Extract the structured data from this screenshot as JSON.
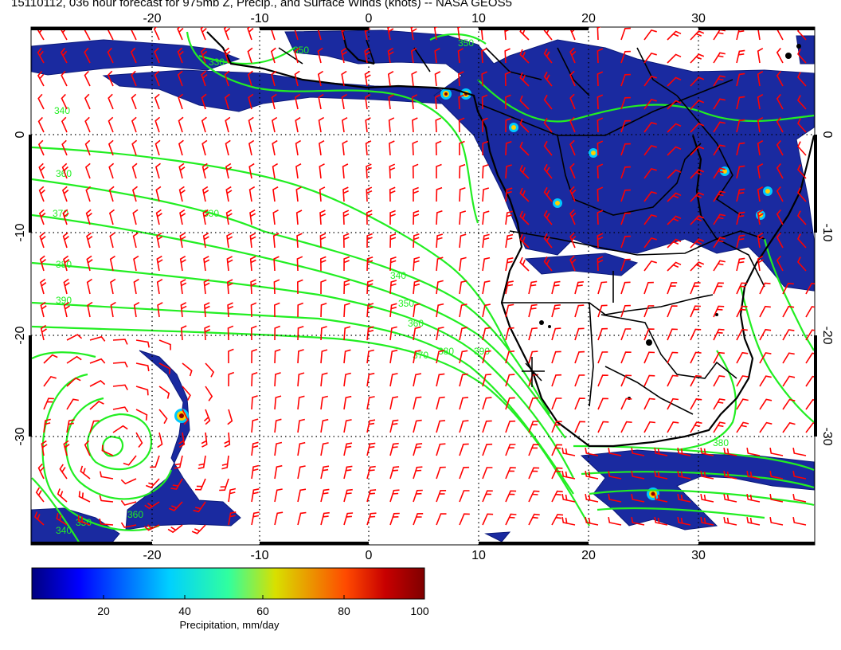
{
  "title": "15110112, 036 hour forecast for 975mb Z, Precip., and Surface Winds (knots) -- NASA GEOS5",
  "map": {
    "lon_ticks": [
      "-20",
      "-10",
      "0",
      "10",
      "20",
      "30"
    ],
    "lat_ticks": [
      "0",
      "-10",
      "-20",
      "-30"
    ],
    "contour_labels": [
      "340",
      "330",
      "350",
      "360",
      "370",
      "380",
      "390",
      "330",
      "350",
      "340",
      "350",
      "360",
      "370",
      "380",
      "390",
      "380",
      "340",
      "350",
      "360"
    ],
    "colors": {
      "precip_base": "#1a2aa0",
      "wind_barbs": "#ff0000",
      "contours": "#22ee22",
      "coastlines": "#000000",
      "grid": "#000000"
    }
  },
  "colorbar": {
    "ticks": [
      "20",
      "40",
      "60",
      "80",
      "100"
    ],
    "label": "Precipitation, mm/day",
    "min": 0,
    "max": 100
  }
}
